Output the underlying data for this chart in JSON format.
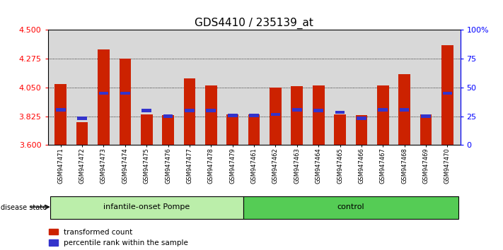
{
  "title": "GDS4410 / 235139_at",
  "samples": [
    "GSM947471",
    "GSM947472",
    "GSM947473",
    "GSM947474",
    "GSM947475",
    "GSM947476",
    "GSM947477",
    "GSM947478",
    "GSM947479",
    "GSM947461",
    "GSM947462",
    "GSM947463",
    "GSM947464",
    "GSM947465",
    "GSM947466",
    "GSM947467",
    "GSM947468",
    "GSM947469",
    "GSM947470"
  ],
  "bar_values": [
    4.075,
    3.78,
    4.35,
    4.275,
    3.84,
    3.835,
    4.12,
    4.065,
    3.84,
    3.84,
    4.05,
    4.06,
    4.065,
    3.84,
    3.835,
    4.065,
    4.155,
    3.84,
    4.38
  ],
  "blue_values": [
    3.875,
    3.81,
    4.005,
    4.005,
    3.87,
    3.825,
    3.87,
    3.87,
    3.83,
    3.83,
    3.84,
    3.875,
    3.87,
    3.855,
    3.81,
    3.875,
    3.875,
    3.825,
    4.005
  ],
  "ymin": 3.6,
  "ymax": 4.5,
  "yticks": [
    3.6,
    3.825,
    4.05,
    4.275,
    4.5
  ],
  "right_yticks": [
    0,
    25,
    50,
    75,
    100
  ],
  "right_ytick_labels": [
    "0",
    "25",
    "50",
    "75",
    "100%"
  ],
  "bar_color": "#cc2200",
  "blue_color": "#3333cc",
  "group1_label": "infantile-onset Pompe",
  "group2_label": "control",
  "group1_count": 9,
  "group2_count": 10,
  "disease_state_label": "disease state",
  "legend1": "transformed count",
  "legend2": "percentile rank within the sample",
  "plot_bg": "#d8d8d8",
  "xtick_bg": "#d8d8d8",
  "group1_color": "#bbeeaa",
  "group2_color": "#55cc55",
  "title_fontsize": 11,
  "bar_width": 0.55
}
